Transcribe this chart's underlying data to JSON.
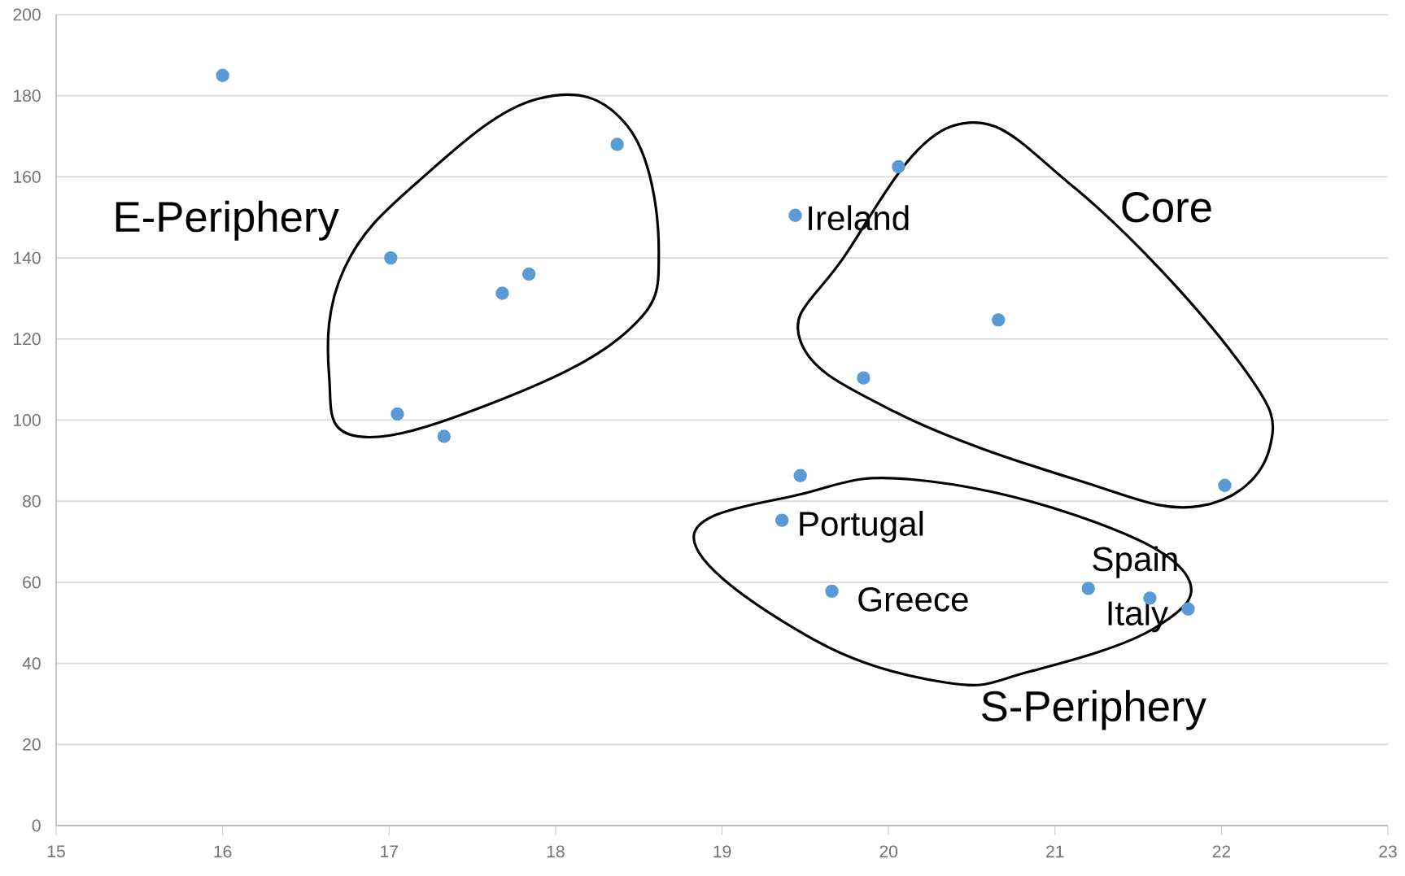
{
  "chart_data": {
    "type": "scatter",
    "x": [
      16.0,
      18.37,
      17.01,
      17.68,
      17.84,
      17.05,
      17.33,
      20.06,
      19.44,
      20.66,
      19.85,
      22.02,
      19.47,
      19.36,
      19.66,
      21.2,
      21.57,
      21.8
    ],
    "values": [
      185,
      168,
      140,
      131.3,
      136,
      101.5,
      96,
      162.5,
      150.5,
      124.7,
      110.4,
      83.9,
      86.3,
      75.3,
      57.8,
      58.5,
      56.1,
      53.4
    ],
    "color": "#5b9bd5",
    "marker": "circle",
    "grid": "y",
    "xlim": [
      15,
      23
    ],
    "ylim": [
      0,
      200
    ],
    "xticks": [
      15,
      16,
      17,
      18,
      19,
      20,
      21,
      22,
      23
    ],
    "yticks": [
      0,
      20,
      40,
      60,
      80,
      100,
      120,
      140,
      160,
      180,
      200
    ],
    "annotations": [
      {
        "text": "Ireland",
        "x": 19.44,
        "y": 150.5
      },
      {
        "text": "Portugal",
        "x": 19.36,
        "y": 75.3
      },
      {
        "text": "Greece",
        "x": 19.66,
        "y": 57.8
      },
      {
        "text": "Spain",
        "x": 21.2,
        "y": 58.5
      },
      {
        "text": "Italy",
        "x": 21.57,
        "y": 56.1
      },
      "E-Periphery",
      "Core",
      "S-Periphery"
    ]
  }
}
